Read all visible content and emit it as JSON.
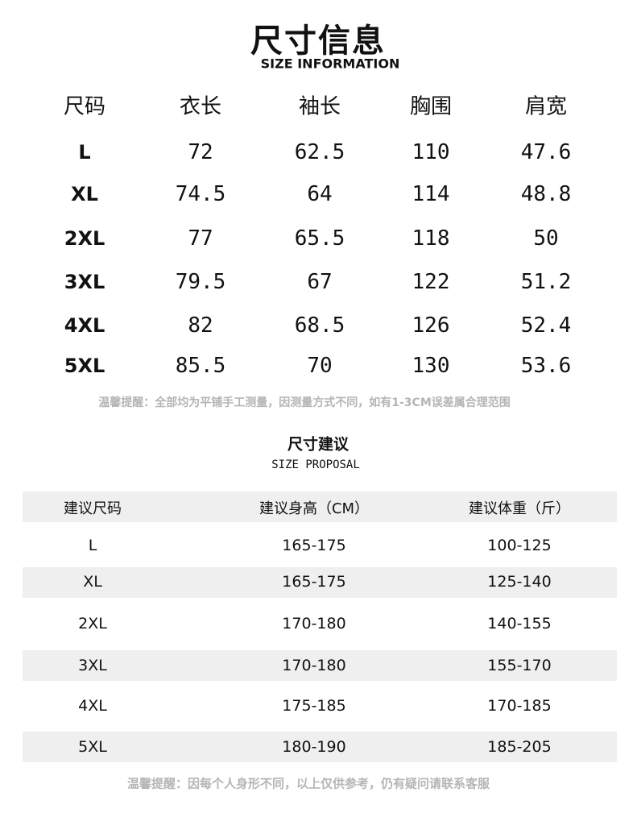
{
  "header": {
    "title": "尺寸信息",
    "subtitle": "SIZE INFORMATION"
  },
  "size_table": {
    "columns": [
      "尺码",
      "衣长",
      "袖长",
      "胸围",
      "肩宽"
    ],
    "rows": [
      [
        "L",
        "72",
        "62.5",
        "110",
        "47.6"
      ],
      [
        "XL",
        "74.5",
        "64",
        "114",
        "48.8"
      ],
      [
        "2XL",
        "77",
        "65.5",
        "118",
        "50"
      ],
      [
        "3XL",
        "79.5",
        "67",
        "122",
        "51.2"
      ],
      [
        "4XL",
        "82",
        "68.5",
        "126",
        "52.4"
      ],
      [
        "5XL",
        "85.5",
        "70",
        "130",
        "53.6"
      ]
    ],
    "note": "温馨提醒：全部均为平铺手工测量，因测量方式不同，如有1-3CM误差属合理范围"
  },
  "proposal": {
    "title": "尺寸建议",
    "subtitle": "SIZE PROPOSAL",
    "columns": [
      "建议尺码",
      "建议身高（CM）",
      "建议体重（斤）"
    ],
    "rows": [
      [
        "L",
        "165-175",
        "100-125"
      ],
      [
        "XL",
        "165-175",
        "125-140"
      ],
      [
        "2XL",
        "170-180",
        "140-155"
      ],
      [
        "3XL",
        "170-180",
        "155-170"
      ],
      [
        "4XL",
        "175-185",
        "170-185"
      ],
      [
        "5XL",
        "180-190",
        "185-205"
      ]
    ],
    "note": "温馨提醒：因每个人身形不同，以上仅供参考，仍有疑问请联系客服"
  },
  "colors": {
    "band": "#efefef",
    "note": "#b5b5b5",
    "text": "#111111"
  }
}
